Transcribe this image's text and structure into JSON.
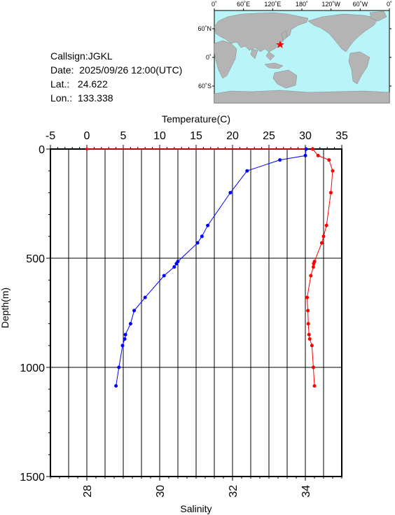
{
  "station": {
    "callsign_label": "Callsign:",
    "callsign": "JGKL",
    "date_label": "Date:",
    "date": "2025/09/26 12:00(UTC)",
    "lat_label": "Lat.:",
    "lat": "24.622",
    "lon_label": "Lon.:",
    "lon": "133.338"
  },
  "map": {
    "top_labels": [
      "0˚",
      "60˚E",
      "120˚E",
      "180˚",
      "120˚W",
      "60˚W",
      "0˚"
    ],
    "left_labels": [
      "60˚N",
      "0˚",
      "60˚S"
    ],
    "ocean_color": "#b8f4f8",
    "land_color": "#b4b4b4",
    "marker_color": "#ff0000"
  },
  "chart_data": {
    "type": "line",
    "xlabel_top": "Temperature(C)",
    "xlabel_bottom": "Salinity",
    "ylabel": "Depth(m)",
    "temperature_ticks": [
      "-5",
      "0",
      "5",
      "10",
      "15",
      "20",
      "25",
      "30",
      "35"
    ],
    "salinity_ticks": [
      "28",
      "30",
      "32",
      "34"
    ],
    "depth_ticks": [
      "0",
      "500",
      "1000",
      "1500"
    ],
    "temperature_range": [
      -5,
      35
    ],
    "salinity_range": [
      27,
      35
    ],
    "depth_range": [
      0,
      1500
    ],
    "grid": true,
    "series": [
      {
        "name": "Temperature",
        "color": "#0000ff",
        "axis": "top",
        "depth": [
          0,
          30,
          50,
          100,
          200,
          350,
          400,
          430,
          515,
          525,
          540,
          580,
          680,
          740,
          800,
          850,
          870,
          900,
          1000,
          1085
        ],
        "values": [
          30.1,
          30.0,
          26.5,
          22.0,
          19.7,
          16.6,
          15.8,
          15.2,
          12.5,
          12.3,
          12.0,
          10.6,
          8.0,
          6.5,
          6.0,
          5.3,
          5.2,
          4.9,
          4.4,
          4.0
        ]
      },
      {
        "name": "Salinity",
        "color": "#ff0000",
        "axis": "bottom",
        "depth": [
          0,
          30,
          50,
          100,
          200,
          350,
          400,
          430,
          515,
          525,
          540,
          580,
          680,
          740,
          800,
          850,
          870,
          900,
          1000,
          1085
        ],
        "values": [
          34.2,
          34.35,
          34.65,
          34.75,
          34.7,
          34.58,
          34.5,
          34.45,
          34.25,
          34.23,
          34.22,
          34.15,
          34.05,
          34.07,
          34.08,
          34.1,
          34.12,
          34.18,
          34.22,
          34.25
        ]
      }
    ],
    "surface_line": {
      "from_temperature": 0,
      "to_temperature": 30.1,
      "depth": 0,
      "color": "#ff0000"
    }
  }
}
